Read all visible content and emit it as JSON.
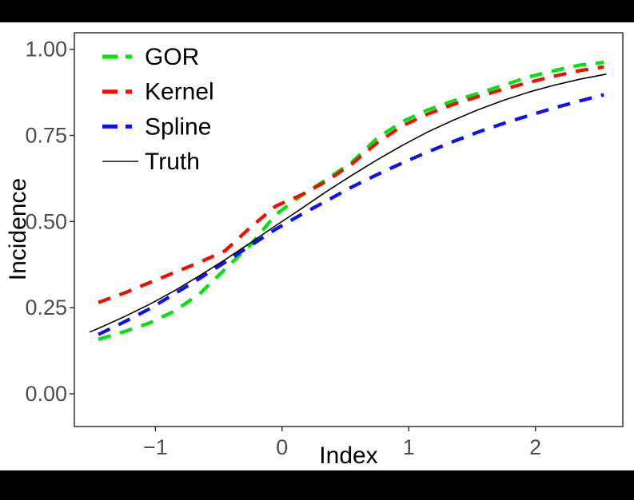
{
  "chart_data": {
    "type": "line",
    "title": "",
    "xlabel": "Index",
    "ylabel": "Incidence",
    "xlim": [
      -1.64,
      2.69
    ],
    "ylim": [
      -0.095,
      1.048
    ],
    "grid": false,
    "legend_position": "inside-top-left",
    "xticks": [
      -1,
      0,
      1,
      2
    ],
    "xtick_labels": [
      "−1",
      "0",
      "1",
      "2"
    ],
    "yticks": [
      0,
      0.25,
      0.5,
      0.75,
      1.0
    ],
    "ytick_labels": [
      "0.00",
      "0.25",
      "0.50",
      "0.75",
      "1.00"
    ],
    "axis_color": "#333333",
    "tick_text_color": "#4d4d4d",
    "x": [
      -1.45,
      -1.25,
      -1.05,
      -0.85,
      -0.65,
      -0.45,
      -0.25,
      -0.05,
      0.15,
      0.35,
      0.55,
      0.75,
      0.95,
      1.15,
      1.35,
      1.55,
      1.75,
      1.95,
      2.15,
      2.35,
      2.54
    ],
    "series": [
      {
        "name": "GOR",
        "color": "#00E30B",
        "style": "dashed",
        "width": 4.3,
        "values": [
          0.158,
          0.18,
          0.205,
          0.24,
          0.29,
          0.362,
          0.432,
          0.52,
          0.575,
          0.622,
          0.672,
          0.742,
          0.79,
          0.824,
          0.85,
          0.872,
          0.896,
          0.92,
          0.938,
          0.954,
          0.962
        ]
      },
      {
        "name": "Kernel",
        "color": "#EE1100",
        "style": "dashed",
        "width": 4.3,
        "values": [
          0.265,
          0.292,
          0.322,
          0.352,
          0.382,
          0.415,
          0.483,
          0.545,
          0.577,
          0.617,
          0.667,
          0.728,
          0.778,
          0.812,
          0.84,
          0.863,
          0.884,
          0.904,
          0.922,
          0.938,
          0.949
        ]
      },
      {
        "name": "Spline",
        "color": "#1111EE",
        "style": "dashed",
        "width": 4.3,
        "values": [
          0.172,
          0.208,
          0.246,
          0.29,
          0.335,
          0.382,
          0.43,
          0.478,
          0.52,
          0.56,
          0.6,
          0.636,
          0.67,
          0.702,
          0.732,
          0.76,
          0.785,
          0.808,
          0.83,
          0.85,
          0.868
        ]
      },
      {
        "name": "Truth",
        "color": "#000000",
        "style": "solid",
        "width": 1.6,
        "x": [
          -1.52,
          -1.45,
          -1.25,
          -1.05,
          -0.85,
          -0.65,
          -0.45,
          -0.25,
          -0.05,
          0.15,
          0.35,
          0.55,
          0.75,
          0.95,
          1.15,
          1.35,
          1.55,
          1.75,
          1.95,
          2.15,
          2.35,
          2.56
        ],
        "values": [
          0.179,
          0.19,
          0.223,
          0.259,
          0.299,
          0.343,
          0.389,
          0.438,
          0.488,
          0.537,
          0.587,
          0.634,
          0.679,
          0.721,
          0.76,
          0.794,
          0.825,
          0.852,
          0.876,
          0.896,
          0.913,
          0.928
        ]
      }
    ]
  }
}
